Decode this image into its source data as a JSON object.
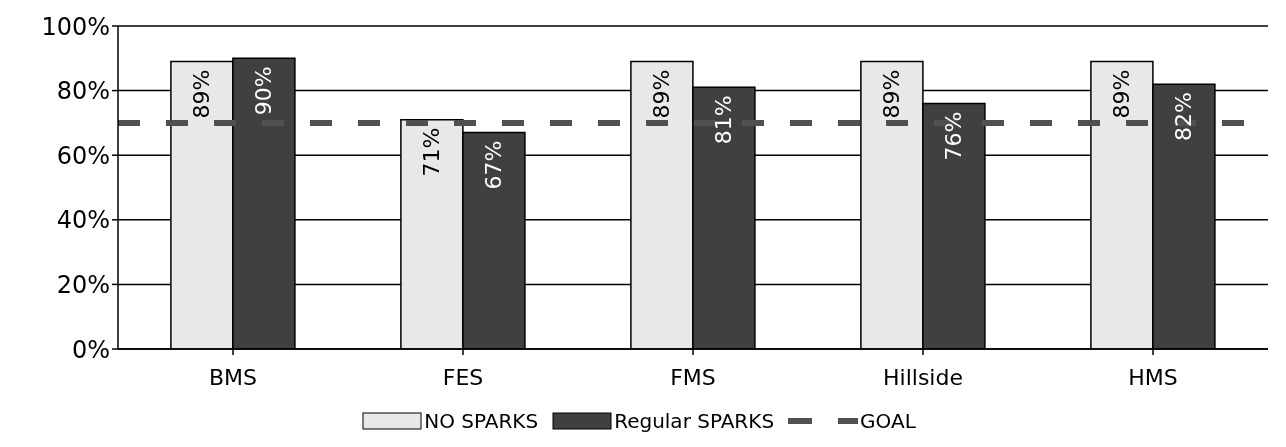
{
  "chart_data": {
    "type": "bar",
    "categories": [
      "BMS",
      "FES",
      "FMS",
      "Hillside",
      "HMS"
    ],
    "series": [
      {
        "name": "NO SPARKS",
        "color": "#e8e8e8",
        "values": [
          89,
          71,
          89,
          89,
          89
        ],
        "value_labels": [
          "89%",
          "71%",
          "89%",
          "89%",
          "89%"
        ]
      },
      {
        "name": "Regular SPARKS",
        "color": "#404040",
        "values": [
          90,
          67,
          81,
          76,
          82
        ],
        "value_labels": [
          "90%",
          "67%",
          "81%",
          "76%",
          "82%"
        ]
      }
    ],
    "ylim": [
      0,
      100
    ],
    "yticks": [
      {
        "value": 0,
        "label": "0%"
      },
      {
        "value": 20,
        "label": "20%"
      },
      {
        "value": 40,
        "label": "40%"
      },
      {
        "value": 60,
        "label": "60%"
      },
      {
        "value": 80,
        "label": "80%"
      },
      {
        "value": 100,
        "label": "100%"
      }
    ],
    "grid": "y",
    "ref_lines": [
      {
        "axis": "y",
        "value": 70,
        "label": "GOAL",
        "color": "#505050",
        "line_style": "dashed"
      }
    ],
    "legend": "bottom"
  }
}
